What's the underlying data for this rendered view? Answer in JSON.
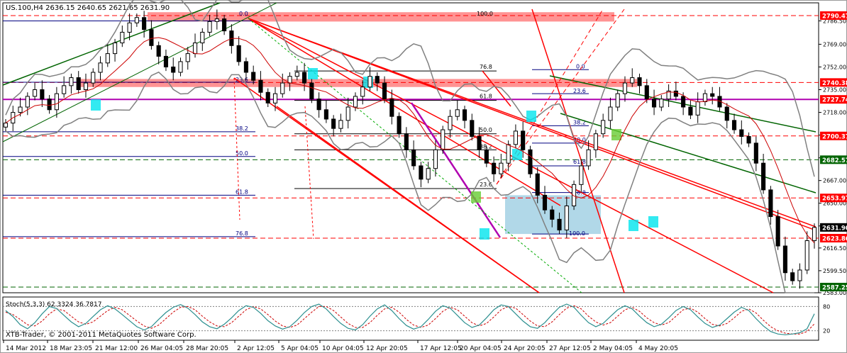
{
  "header": {
    "symbol_ohlc": "US.100,H4  2636.15 2640.65 2621.65 2631.90",
    "stoch_label": "Stoch(5,3,3) 62.3324 36.7817",
    "copyright": "XTB-Trader, © 2001-2011 MetaQuotes Software Corp."
  },
  "colors": {
    "candle": "#000000",
    "bollinger": "#808080",
    "ma": "#cc0000",
    "fib": "#000080",
    "channel_red": "#ff0000",
    "channel_green": "#006400",
    "magenta": "#b000b0",
    "zone_red": "#ff8080",
    "zone_blue": "#a9d4e6",
    "marker_cyan": "#00e5ee",
    "marker_green": "#66cc33",
    "stoch_main": "#2c8f8f",
    "stoch_signal": "#cc0000"
  },
  "chart_data": {
    "type": "line",
    "title": "US.100,H4",
    "ylim": [
      2583.0,
      2800.0
    ],
    "price_ticks": [
      "2786.50",
      "2769.00",
      "2752.00",
      "2735.00",
      "2718.00",
      "2701.00",
      "2684.00",
      "2667.00",
      "2650.00",
      "2633.00",
      "2616.50",
      "2599.50",
      "2583.00"
    ],
    "price_labels": [
      {
        "value": 2790.47,
        "text": "2790.47",
        "style": "red"
      },
      {
        "value": 2740.38,
        "text": "2740.38",
        "style": "red"
      },
      {
        "value": 2727.74,
        "text": "2727.74",
        "style": "red"
      },
      {
        "value": 2700.37,
        "text": "2700.37",
        "style": "red"
      },
      {
        "value": 2682.57,
        "text": "2682.57",
        "style": "green"
      },
      {
        "value": 2653.97,
        "text": "2653.97",
        "style": "red"
      },
      {
        "value": 2631.9,
        "text": "2631.90",
        "style": "black"
      },
      {
        "value": 2623.86,
        "text": "2623.86",
        "style": "red"
      },
      {
        "value": 2587.25,
        "text": "2587.25",
        "style": "green"
      }
    ],
    "time_labels": [
      "14 Mar 2012",
      "18 Mar 23:05",
      "21 Mar 12:00",
      "26 Mar 04:05",
      "28 Mar 20:05",
      "2 Apr 12:05",
      "5 Apr 04:05",
      "10 Apr 04:05",
      "12 Apr 20:05",
      "17 Apr 12:05",
      "20 Apr 04:05",
      "24 Apr 20:05",
      "27 Apr 12:05",
      "2 May 04:05",
      "4 May 20:05"
    ],
    "horizontal_lines": [
      {
        "value": 2790.47,
        "style": "dash-red"
      },
      {
        "value": 2740.38,
        "style": "dash-red"
      },
      {
        "value": 2727.74,
        "style": "solid-magenta"
      },
      {
        "value": 2700.37,
        "style": "dash-red"
      },
      {
        "value": 2682.57,
        "style": "dash-green"
      },
      {
        "value": 2653.97,
        "style": "dash-red"
      },
      {
        "value": 2623.86,
        "style": "dash-red"
      },
      {
        "value": 2587.25,
        "style": "dash-green"
      }
    ],
    "fib_labels": [
      "0.0",
      "100.0",
      "23.6",
      "38.2",
      "50.0",
      "61.8",
      "76.8",
      "76.8",
      "61.8",
      "50.0",
      "38.2",
      "23.6",
      "0.0",
      "0.0",
      "23.6",
      "38.2",
      "50.0",
      "61.8",
      "76.8",
      "100.0"
    ],
    "close": [
      2710,
      2718,
      2722,
      2730,
      2735,
      2728,
      2720,
      2732,
      2738,
      2744,
      2735,
      2740,
      2748,
      2755,
      2762,
      2770,
      2778,
      2785,
      2789,
      2780,
      2768,
      2760,
      2752,
      2748,
      2756,
      2762,
      2770,
      2778,
      2786,
      2788,
      2779,
      2768,
      2756,
      2748,
      2742,
      2733,
      2725,
      2732,
      2740,
      2745,
      2748,
      2740,
      2728,
      2720,
      2713,
      2706,
      2712,
      2722,
      2730,
      2737,
      2745,
      2740,
      2728,
      2715,
      2702,
      2690,
      2678,
      2668,
      2676,
      2690,
      2705,
      2715,
      2720,
      2712,
      2700,
      2690,
      2680,
      2672,
      2680,
      2694,
      2704,
      2690,
      2672,
      2656,
      2645,
      2638,
      2630,
      2648,
      2664,
      2678,
      2690,
      2702,
      2712,
      2722,
      2732,
      2740,
      2744,
      2738,
      2728,
      2722,
      2728,
      2734,
      2730,
      2722,
      2716,
      2726,
      2732,
      2730,
      2722,
      2712,
      2705,
      2700,
      2695,
      2680,
      2660,
      2640,
      2618,
      2598,
      2592,
      2600,
      2622,
      2631.9
    ],
    "stochastic": {
      "ylim": [
        0,
        100
      ],
      "levels": [
        80,
        20
      ],
      "tick_labels": [
        "80",
        "20"
      ],
      "main": [
        70,
        55,
        35,
        25,
        40,
        62,
        80,
        75,
        58,
        42,
        30,
        38,
        55,
        72,
        82,
        74,
        60,
        45,
        30,
        22,
        30,
        48,
        65,
        78,
        85,
        76,
        60,
        42,
        30,
        25,
        36,
        52,
        70,
        82,
        78,
        63,
        45,
        32,
        24,
        30,
        46,
        65,
        80,
        86,
        74,
        55,
        38,
        26,
        22,
        35,
        56,
        74,
        84,
        70,
        50,
        33,
        24,
        30,
        48,
        68,
        82,
        76,
        58,
        40,
        28,
        34,
        52,
        72,
        84,
        80,
        62,
        44,
        30,
        26,
        40,
        60,
        78,
        86,
        78,
        58,
        40,
        30,
        38,
        55,
        72,
        82,
        74,
        56,
        40,
        30,
        36,
        52,
        70,
        80,
        72,
        54,
        38,
        28,
        34,
        50,
        66,
        78,
        70,
        50,
        32,
        18,
        12,
        10,
        12,
        15,
        25,
        62
      ],
      "signal": [
        66,
        60,
        48,
        35,
        32,
        44,
        62,
        74,
        70,
        56,
        42,
        36,
        42,
        56,
        70,
        78,
        72,
        58,
        44,
        32,
        26,
        34,
        50,
        66,
        78,
        80,
        72,
        56,
        42,
        32,
        30,
        40,
        56,
        72,
        80,
        74,
        60,
        44,
        32,
        28,
        34,
        50,
        66,
        80,
        80,
        70,
        54,
        38,
        28,
        28,
        40,
        58,
        74,
        78,
        66,
        48,
        34,
        28,
        34,
        50,
        68,
        78,
        72,
        56,
        40,
        32,
        38,
        54,
        72,
        80,
        76,
        60,
        44,
        32,
        30,
        42,
        60,
        76,
        82,
        74,
        56,
        42,
        34,
        40,
        56,
        72,
        78,
        68,
        52,
        40,
        34,
        40,
        56,
        72,
        76,
        66,
        50,
        36,
        32,
        38,
        52,
        68,
        74,
        64,
        46,
        30,
        20,
        14,
        12,
        12,
        18,
        37
      ]
    }
  }
}
